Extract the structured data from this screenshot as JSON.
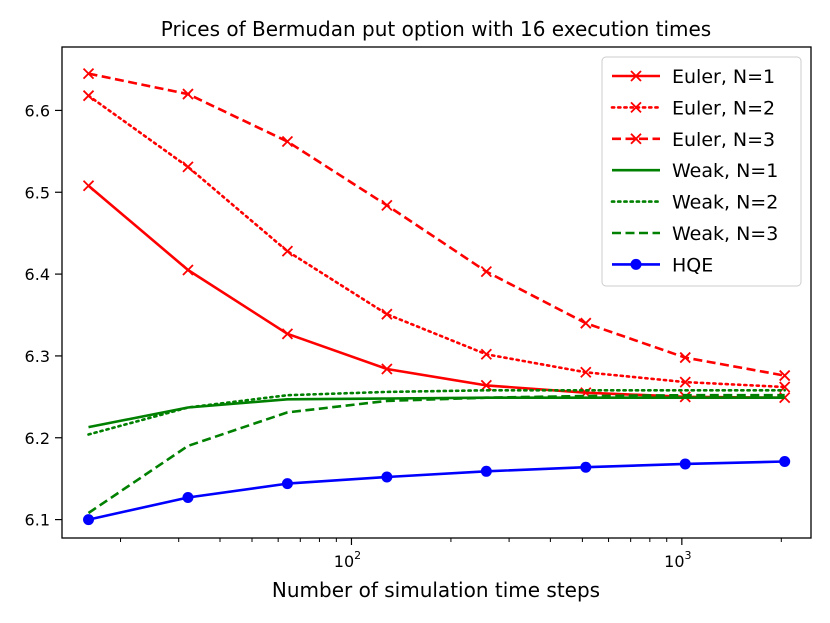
{
  "chart_data": {
    "type": "line",
    "title": "Prices of Bermudan put option with 16 execution times",
    "xlabel": "Number of simulation time steps",
    "ylabel": "",
    "xscale": "log",
    "xlim": [
      13.3,
      2460
    ],
    "ylim": [
      6.0775,
      6.6775
    ],
    "x": [
      16,
      32,
      64,
      128,
      256,
      512,
      1024,
      2048
    ],
    "x_ticks": [
      {
        "value": 100,
        "base": "10",
        "exp": "2"
      },
      {
        "value": 1000,
        "base": "10",
        "exp": "3"
      }
    ],
    "y_ticks": [
      {
        "value": 6.1,
        "label": "6.1"
      },
      {
        "value": 6.2,
        "label": "6.2"
      },
      {
        "value": 6.3,
        "label": "6.3"
      },
      {
        "value": 6.4,
        "label": "6.4"
      },
      {
        "value": 6.5,
        "label": "6.5"
      },
      {
        "value": 6.6,
        "label": "6.6"
      }
    ],
    "legend_position": "top-right",
    "series": [
      {
        "name": "Euler, N=1",
        "color": "#ff0000",
        "dash": "solid",
        "marker": "x",
        "values": [
          6.508,
          6.405,
          6.327,
          6.284,
          6.264,
          6.255,
          6.25,
          6.249
        ]
      },
      {
        "name": "Euler, N=2",
        "color": "#ff0000",
        "dash": "dotted",
        "marker": "x",
        "values": [
          6.618,
          6.531,
          6.428,
          6.351,
          6.302,
          6.28,
          6.268,
          6.262
        ]
      },
      {
        "name": "Euler, N=3",
        "color": "#ff0000",
        "dash": "dashed",
        "marker": "x",
        "values": [
          6.645,
          6.62,
          6.562,
          6.484,
          6.403,
          6.34,
          6.298,
          6.276
        ]
      },
      {
        "name": "Weak, N=1",
        "color": "#008000",
        "dash": "solid",
        "marker": "none",
        "values": [
          6.213,
          6.237,
          6.247,
          6.248,
          6.249,
          6.249,
          6.249,
          6.249
        ]
      },
      {
        "name": "Weak, N=2",
        "color": "#008000",
        "dash": "dotted",
        "marker": "none",
        "values": [
          6.204,
          6.237,
          6.252,
          6.256,
          6.258,
          6.258,
          6.258,
          6.258
        ]
      },
      {
        "name": "Weak, N=3",
        "color": "#008000",
        "dash": "dashed",
        "marker": "none",
        "values": [
          6.108,
          6.19,
          6.231,
          6.245,
          6.249,
          6.251,
          6.252,
          6.252
        ]
      },
      {
        "name": "HQE",
        "color": "#0000ff",
        "dash": "solid",
        "marker": "o",
        "values": [
          6.1,
          6.127,
          6.144,
          6.152,
          6.159,
          6.164,
          6.168,
          6.171
        ]
      }
    ]
  }
}
